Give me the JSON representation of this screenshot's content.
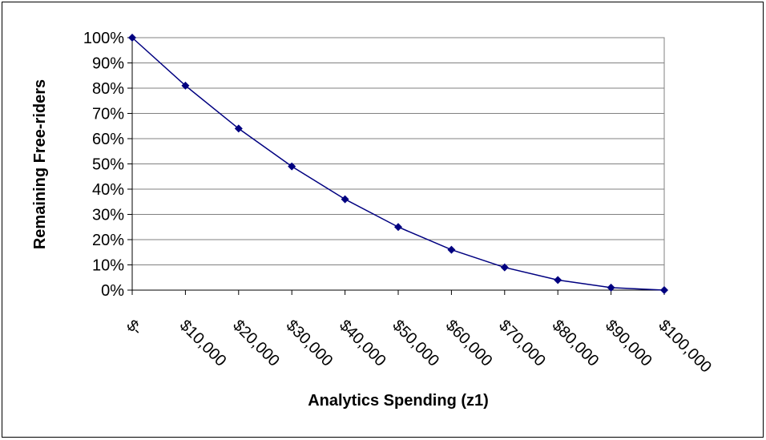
{
  "chart_data": {
    "type": "line",
    "title": "",
    "xlabel": "Analytics Spending (z1)",
    "ylabel": "Remaining Free-riders",
    "categories": [
      "$-",
      "$10,000",
      "$20,000",
      "$30,000",
      "$40,000",
      "$50,000",
      "$60,000",
      "$70,000",
      "$80,000",
      "$90,000",
      "$100,000"
    ],
    "x": [
      0,
      10000,
      20000,
      30000,
      40000,
      50000,
      60000,
      70000,
      80000,
      90000,
      100000
    ],
    "series": [
      {
        "values": [
          1.0,
          0.81,
          0.64,
          0.49,
          0.36,
          0.25,
          0.16,
          0.09,
          0.04,
          0.01,
          0.0
        ]
      }
    ],
    "ylim": [
      0,
      1
    ],
    "y_ticks": [
      0,
      0.1,
      0.2,
      0.3,
      0.4,
      0.5,
      0.6,
      0.7,
      0.8,
      0.9,
      1.0
    ],
    "y_tick_labels": [
      "0%",
      "10%",
      "20%",
      "30%",
      "40%",
      "50%",
      "60%",
      "70%",
      "80%",
      "90%",
      "100%"
    ],
    "grid": "horizontal",
    "legend": "none",
    "colors": {
      "line": "#000080",
      "marker": "#000080",
      "grid": "#808080",
      "plot_border": "#808080"
    },
    "marker": "diamond"
  }
}
